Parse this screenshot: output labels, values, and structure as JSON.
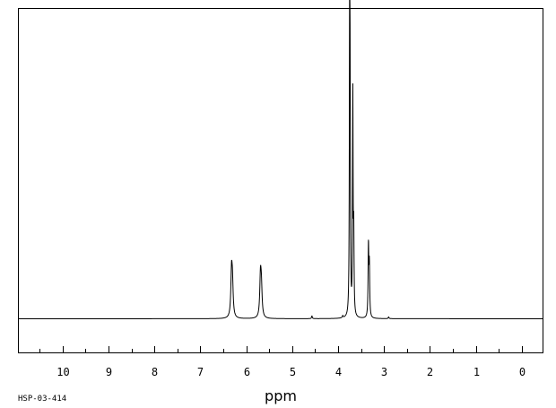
{
  "chart_data": {
    "type": "line",
    "title": "",
    "xlabel": "ppm",
    "ylabel": "",
    "x_reversed": true,
    "xlim": [
      -0.45,
      10.95
    ],
    "ylim": [
      -1,
      9.2
    ],
    "x_ticks": [
      {
        "value": 10,
        "label": "10"
      },
      {
        "value": 9,
        "label": "9"
      },
      {
        "value": 8,
        "label": "8"
      },
      {
        "value": 7,
        "label": "7"
      },
      {
        "value": 6,
        "label": "6"
      },
      {
        "value": 5,
        "label": "5"
      },
      {
        "value": 4,
        "label": "4"
      },
      {
        "value": 3,
        "label": "3"
      },
      {
        "value": 2,
        "label": "2"
      },
      {
        "value": 1,
        "label": "1"
      },
      {
        "value": 0,
        "label": "0"
      }
    ],
    "minor_tick_step": 0.5,
    "grid": false,
    "baseline": 0,
    "series": [
      {
        "peaks": [
          {
            "ppm": 6.32,
            "height": 1.3,
            "width": 0.018
          },
          {
            "ppm": 6.3,
            "height": 0.9,
            "width": 0.018
          },
          {
            "ppm": 5.69,
            "height": 1.2,
            "width": 0.018
          },
          {
            "ppm": 5.67,
            "height": 0.8,
            "width": 0.018
          },
          {
            "ppm": 4.57,
            "height": 0.08,
            "width": 0.01
          },
          {
            "ppm": 3.9,
            "height": 0.06,
            "width": 0.01
          },
          {
            "ppm": 3.75,
            "height": 8.0,
            "width": 0.007
          },
          {
            "ppm": 3.74,
            "height": 6.2,
            "width": 0.007
          },
          {
            "ppm": 3.68,
            "height": 6.5,
            "width": 0.007
          },
          {
            "ppm": 3.66,
            "height": 2.4,
            "width": 0.008
          },
          {
            "ppm": 3.34,
            "height": 2.1,
            "width": 0.009
          },
          {
            "ppm": 3.32,
            "height": 1.5,
            "width": 0.009
          },
          {
            "ppm": 2.9,
            "height": 0.05,
            "width": 0.01
          }
        ]
      }
    ]
  },
  "spectrum_code": "HSP-03-414"
}
